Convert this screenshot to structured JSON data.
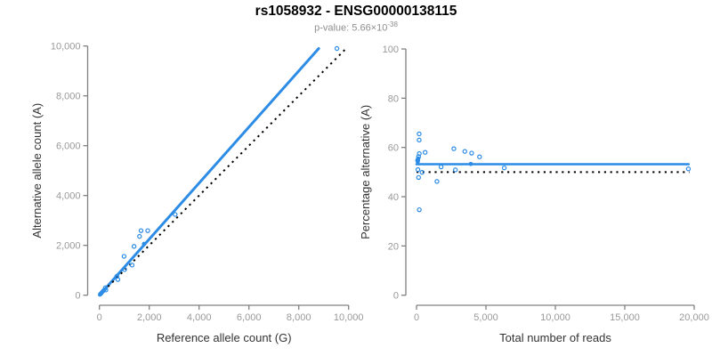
{
  "figure": {
    "title": "rs1058932 - ENSG00000138115",
    "subtitle_prefix": "p-value: 5.66×10",
    "subtitle_exponent": "-38"
  },
  "colors": {
    "accent_blue": "#2C8CE6",
    "identity_line": "#000000",
    "axis_line": "#808080",
    "tick_label": "#999999",
    "axis_title": "#333333",
    "title": "#000000",
    "subtitle": "#8E8E8E",
    "background": "#FFFFFF"
  },
  "chart_data": [
    {
      "type": "scatter",
      "name": "allele-count-scatter",
      "xlabel": "Reference allele count (G)",
      "ylabel": "Alternative allele count (A)",
      "xlim": [
        0,
        10000
      ],
      "ylim": [
        0,
        10000
      ],
      "grid": false,
      "legend": "none",
      "xticks": {
        "values": [
          0,
          2000,
          4000,
          6000,
          8000,
          10000
        ],
        "labels": [
          "0",
          "2,000",
          "4,000",
          "6,000",
          "8,000",
          "10,000"
        ]
      },
      "yticks": {
        "values": [
          0,
          2000,
          4000,
          6000,
          8000,
          10000
        ],
        "labels": [
          "0",
          "2,000",
          "4,000",
          "6,000",
          "8,000",
          "10,000"
        ]
      },
      "lines": [
        {
          "name": "fitted-ratio-line",
          "style": "solid",
          "color": "#2C8CE6",
          "width": 3,
          "points": [
            [
              0,
              0
            ],
            [
              8800,
              9900
            ]
          ]
        },
        {
          "name": "identity-line",
          "style": "dotted",
          "color": "#000000",
          "width": 2,
          "points": [
            [
              0,
              0
            ],
            [
              9900,
              9900
            ]
          ]
        }
      ],
      "open_points": [
        [
          240,
          300
        ],
        [
          260,
          210
        ],
        [
          700,
          760
        ],
        [
          740,
          630
        ],
        [
          1010,
          1030
        ],
        [
          990,
          1560
        ],
        [
          1310,
          1210
        ],
        [
          1390,
          1960
        ],
        [
          1610,
          2360
        ],
        [
          1670,
          2590
        ],
        [
          1940,
          2590
        ],
        [
          3040,
          3240
        ],
        [
          9530,
          9900
        ]
      ],
      "filled_points": [
        [
          30,
          30
        ],
        [
          45,
          50
        ],
        [
          60,
          65
        ],
        [
          75,
          85
        ],
        [
          90,
          100
        ],
        [
          120,
          135
        ],
        [
          150,
          170
        ],
        [
          200,
          225
        ],
        [
          1790,
          2060
        ]
      ]
    },
    {
      "type": "scatter",
      "name": "percentage-vs-reads-scatter",
      "xlabel": "Total number of reads",
      "ylabel": "Percentage alternative (A)",
      "xlim": [
        0,
        20000
      ],
      "ylim": [
        0,
        100
      ],
      "grid": false,
      "legend": "none",
      "xticks": {
        "values": [
          0,
          5000,
          10000,
          15000,
          20000
        ],
        "labels": [
          "0",
          "5,000",
          "10,000",
          "15,000",
          "20,000"
        ]
      },
      "yticks": {
        "values": [
          0,
          20,
          40,
          60,
          80,
          100
        ],
        "labels": [
          "0",
          "20",
          "40",
          "60",
          "80",
          "100"
        ]
      },
      "lines": [
        {
          "name": "mean-percentage-line",
          "style": "solid",
          "color": "#2C8CE6",
          "width": 2.6,
          "points": [
            [
              0,
              53.2
            ],
            [
              19600,
              53.2
            ]
          ]
        },
        {
          "name": "null-50-percent-line",
          "style": "dotted",
          "color": "#000000",
          "width": 2,
          "points": [
            [
              0,
              50
            ],
            [
              19650,
              50
            ]
          ]
        }
      ],
      "open_points": [
        [
          190,
          65.5
        ],
        [
          190,
          63
        ],
        [
          620,
          58
        ],
        [
          200,
          57.5
        ],
        [
          150,
          56.3
        ],
        [
          80,
          54.8
        ],
        [
          2690,
          59.5
        ],
        [
          3480,
          58.4
        ],
        [
          3970,
          57.7
        ],
        [
          4540,
          56.2
        ],
        [
          1770,
          52.1
        ],
        [
          2800,
          50.9
        ],
        [
          6320,
          51.7
        ],
        [
          100,
          51
        ],
        [
          400,
          49.9
        ],
        [
          150,
          47.8
        ],
        [
          1470,
          46.2
        ],
        [
          200,
          34.7
        ],
        [
          19580,
          51.3
        ]
      ],
      "filled_points": [
        [
          120,
          55.5
        ],
        [
          90,
          54.3
        ],
        [
          3910,
          53.3
        ]
      ]
    }
  ]
}
